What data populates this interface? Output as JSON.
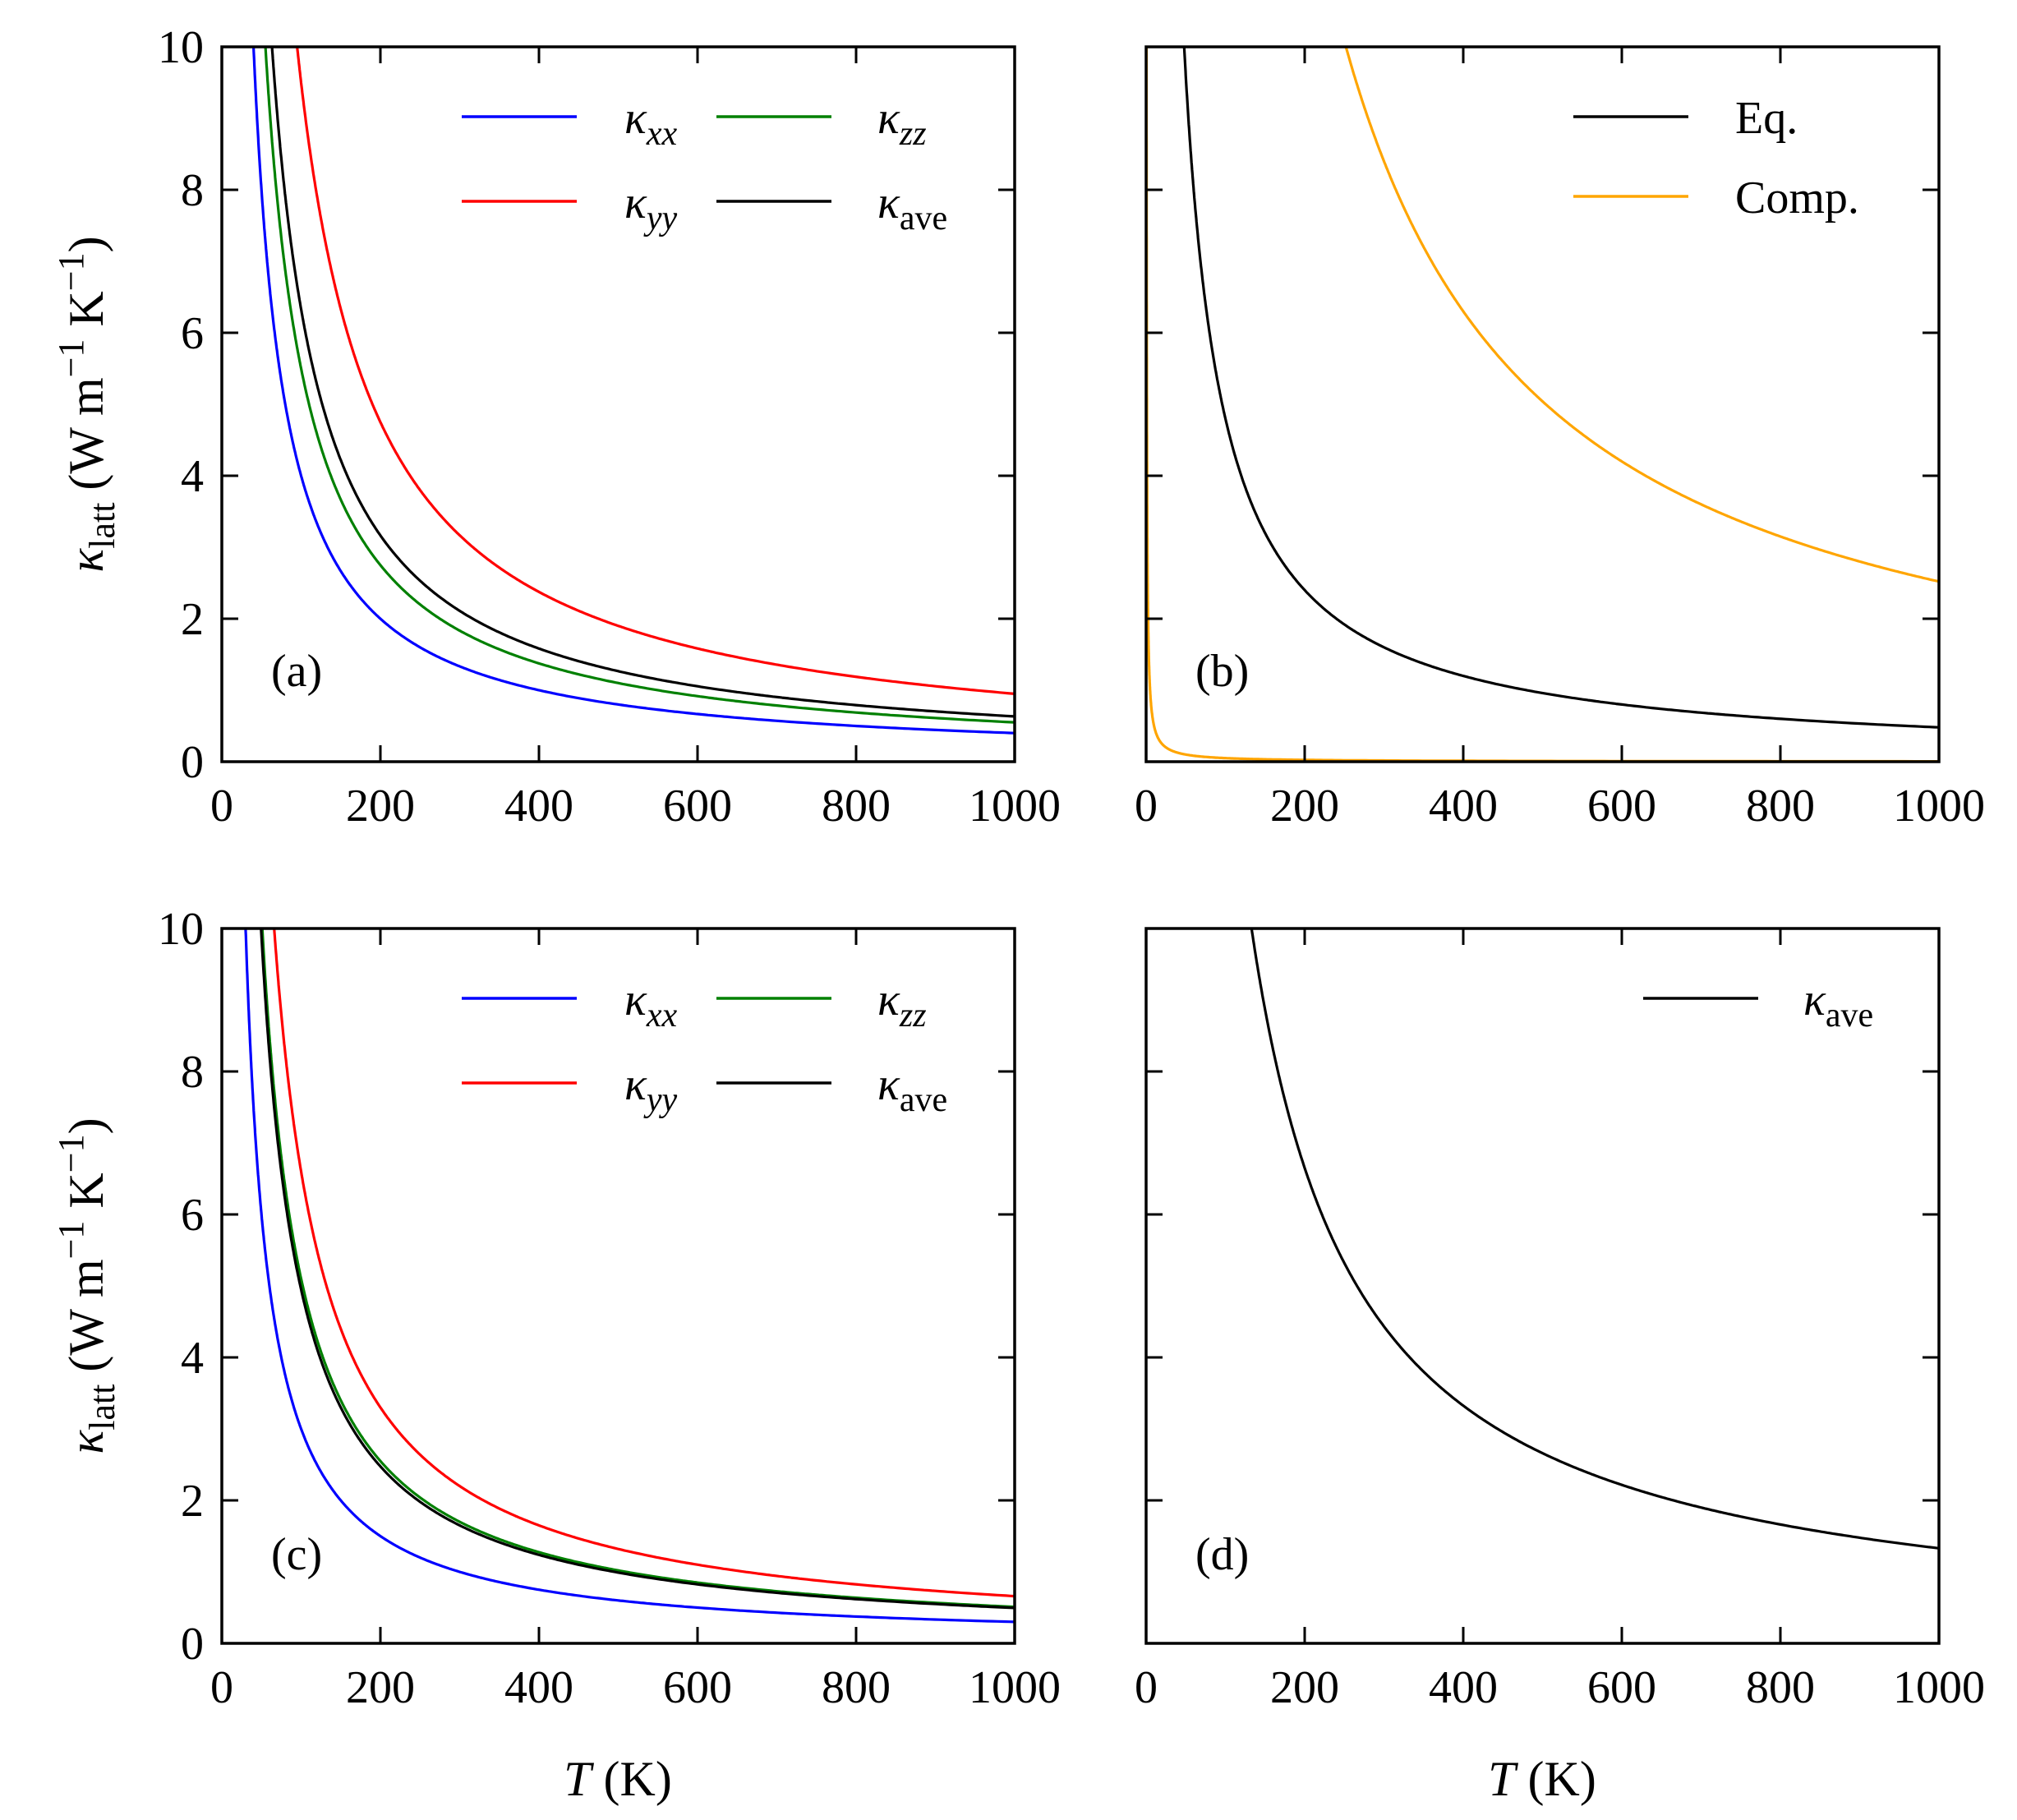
{
  "colors": {
    "xx": "#0000ff",
    "yy": "#ff0000",
    "zz": "#008000",
    "ave": "#000000",
    "eq": "#000000",
    "comp": "#ffa500"
  },
  "shared": {
    "xlabel_symbol": "T",
    "xlabel_unit": "(K)",
    "ylabel_symbol": "κ",
    "ylabel_sub": "latt",
    "ylabel_unit_pre": "(W m",
    "ylabel_sup1": "−1",
    "ylabel_mid": "K",
    "ylabel_sup2": "−1",
    "ylabel_close": ")",
    "xticks": [
      "0",
      "200",
      "400",
      "600",
      "800",
      "1000"
    ],
    "yticks": [
      "0",
      "2",
      "4",
      "6",
      "8",
      "10"
    ]
  },
  "chart_data": [
    {
      "panel": "(a)",
      "type": "line",
      "xlim": [
        0,
        1000
      ],
      "ylim": [
        0,
        10
      ],
      "legend_loc": "upper-right, two columns",
      "series": [
        {
          "key": "xx",
          "legend_main": "κ",
          "legend_sub": "xx",
          "sub_italic": true,
          "A": 400,
          "values_at": {
            "100": 4.0,
            "200": 2.0,
            "400": 1.0,
            "1000": 0.4
          }
        },
        {
          "key": "zz",
          "legend_main": "κ",
          "legend_sub": "zz",
          "sub_italic": true,
          "A": 550,
          "values_at": {
            "100": 5.5,
            "200": 2.75,
            "400": 1.38,
            "1000": 0.55
          }
        },
        {
          "key": "yy",
          "legend_main": "κ",
          "legend_sub": "yy",
          "sub_italic": true,
          "A": 950,
          "values_at": {
            "100": 9.5,
            "200": 4.75,
            "400": 2.38,
            "1000": 0.95
          }
        },
        {
          "key": "ave",
          "legend_main": "κ",
          "legend_sub": "ave",
          "sub_italic": false,
          "A": 633,
          "values_at": {
            "100": 6.33,
            "200": 3.17,
            "400": 1.58,
            "1000": 0.63
          }
        }
      ]
    },
    {
      "panel": "(b)",
      "type": "line",
      "xlim": [
        0,
        1000
      ],
      "ylim": [
        0,
        10
      ],
      "legend_loc": "upper-right",
      "series": [
        {
          "key": "eq",
          "legend_label": "Eq.",
          "A": 480,
          "values_at": {
            "100": 4.8,
            "200": 2.4,
            "400": 1.2,
            "1000": 0.48
          }
        },
        {
          "key": "comp",
          "legend_label": "Comp.",
          "A": 2520,
          "values_at": {
            "300": 8.4,
            "500": 5.04,
            "1000": 2.52
          }
        },
        {
          "key": "comp",
          "legend_label": "",
          "note": "near-vertical orange segment at T ≈ 0",
          "A": 5,
          "values_at": {
            "0.5": 10.0
          }
        }
      ]
    },
    {
      "panel": "(c)",
      "type": "line",
      "xlim": [
        0,
        1000
      ],
      "ylim": [
        0,
        10
      ],
      "legend_loc": "upper-right, two columns",
      "series": [
        {
          "key": "xx",
          "legend_main": "κ",
          "legend_sub": "xx",
          "sub_italic": true,
          "A": 300,
          "values_at": {
            "100": 3.0,
            "200": 1.5,
            "400": 0.75,
            "1000": 0.3
          }
        },
        {
          "key": "zz",
          "legend_main": "κ",
          "legend_sub": "zz",
          "sub_italic": true,
          "A": 510,
          "values_at": {
            "100": 5.1,
            "200": 2.55,
            "400": 1.28,
            "1000": 0.51
          }
        },
        {
          "key": "yy",
          "legend_main": "κ",
          "legend_sub": "yy",
          "sub_italic": true,
          "A": 660,
          "values_at": {
            "100": 6.6,
            "200": 3.3,
            "400": 1.65,
            "1000": 0.66
          }
        },
        {
          "key": "ave",
          "legend_main": "κ",
          "legend_sub": "ave",
          "sub_italic": false,
          "A": 495,
          "values_at": {
            "100": 4.95,
            "200": 2.48,
            "400": 1.24,
            "1000": 0.5
          }
        }
      ]
    },
    {
      "panel": "(d)",
      "type": "line",
      "xlim": [
        0,
        1000
      ],
      "ylim": [
        0,
        10
      ],
      "legend_loc": "upper-right",
      "series": [
        {
          "key": "ave",
          "legend_main": "κ",
          "legend_sub": "ave",
          "sub_italic": false,
          "A": 1330,
          "values_at": {
            "200": 6.65,
            "400": 3.33,
            "1000": 1.33
          }
        }
      ]
    }
  ]
}
